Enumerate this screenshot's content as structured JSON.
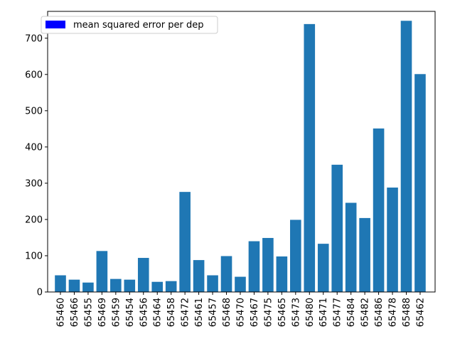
{
  "chart_data": {
    "type": "bar",
    "title": "",
    "xlabel": "",
    "ylabel": "",
    "categories": [
      "65460",
      "65466",
      "65455",
      "65469",
      "65459",
      "65454",
      "65456",
      "65464",
      "65458",
      "65472",
      "65461",
      "65457",
      "65468",
      "65470",
      "65467",
      "65475",
      "65465",
      "65473",
      "65480",
      "65471",
      "65477",
      "65484",
      "65482",
      "65486",
      "65478",
      "65488",
      "65462"
    ],
    "series": [
      {
        "name": "mean squared error per dep",
        "values": [
          46,
          34,
          26,
          113,
          36,
          34,
          94,
          28,
          30,
          276,
          88,
          46,
          99,
          42,
          140,
          149,
          98,
          199,
          739,
          133,
          351,
          246,
          204,
          451,
          288,
          748,
          601
        ]
      }
    ],
    "ylim": [
      0,
      774
    ],
    "yticks": [
      0,
      100,
      200,
      300,
      400,
      500,
      600,
      700
    ],
    "grid": false,
    "legend": "top-left",
    "legend_swatch_color": "#0000ff",
    "bar_color": "#1f77b4"
  }
}
